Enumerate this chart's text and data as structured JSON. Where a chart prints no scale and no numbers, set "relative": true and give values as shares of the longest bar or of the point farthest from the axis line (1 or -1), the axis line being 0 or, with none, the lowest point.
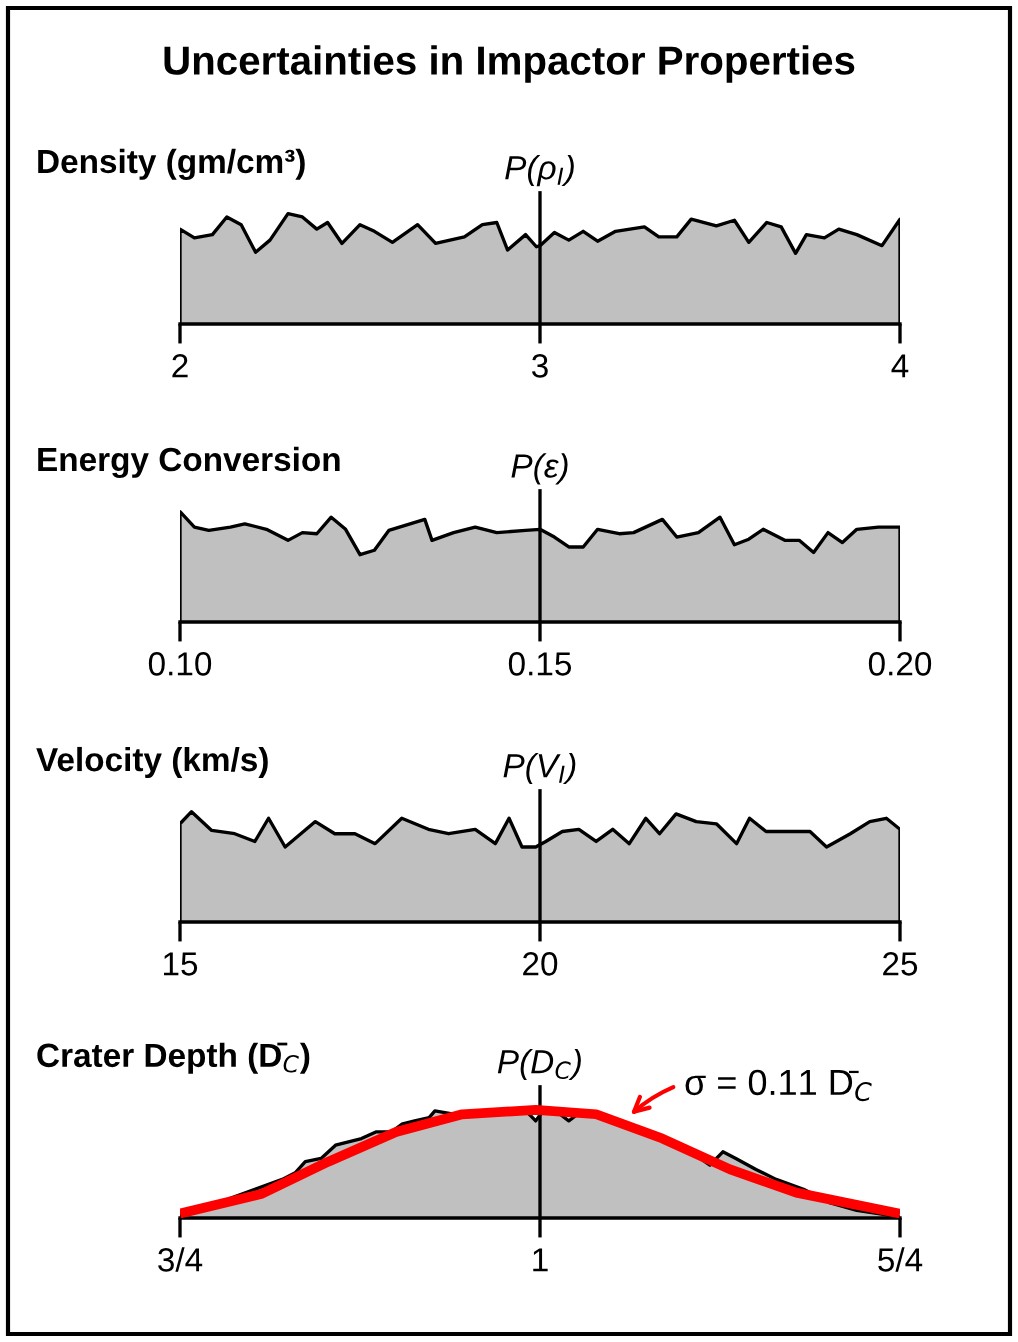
{
  "chart_data": [
    {
      "type": "area",
      "title": "Density (gm/cm³)",
      "relative": true,
      "annotations": [
        "Uncertainties in Impactor Properties"
      ],
      "xlim": [
        2,
        4
      ],
      "xticks": [
        2,
        3,
        4
      ],
      "ref_lines": [
        {
          "axis": "x",
          "value": 3,
          "label": "P(ρ$_{I}$)"
        }
      ],
      "series": [
        {
          "color": "#c0c0c0",
          "x": [
            2.0,
            2.0,
            2.04,
            2.09,
            2.13,
            2.17,
            2.21,
            2.25,
            2.3,
            2.34,
            2.38,
            2.41,
            2.45,
            2.5,
            2.54,
            2.59,
            2.66,
            2.71,
            2.79,
            2.84,
            2.88,
            2.91,
            2.96,
            2.99,
            3.0,
            3.04,
            3.08,
            3.12,
            3.16,
            3.21,
            3.29,
            3.33,
            3.38,
            3.42,
            3.49,
            3.54,
            3.58,
            3.63,
            3.67,
            3.71,
            3.74,
            3.79,
            3.83,
            3.88,
            3.95,
            4.0,
            4.0
          ],
          "values": [
            0,
            0.86,
            0.78,
            0.81,
            0.97,
            0.9,
            0.65,
            0.76,
            1.0,
            0.97,
            0.86,
            0.92,
            0.73,
            0.9,
            0.84,
            0.74,
            0.9,
            0.73,
            0.79,
            0.9,
            0.92,
            0.67,
            0.81,
            0.7,
            0.71,
            0.83,
            0.76,
            0.84,
            0.75,
            0.84,
            0.88,
            0.79,
            0.79,
            0.95,
            0.89,
            0.94,
            0.74,
            0.92,
            0.88,
            0.64,
            0.81,
            0.78,
            0.86,
            0.81,
            0.71,
            0.95,
            0
          ]
        }
      ]
    },
    {
      "type": "area",
      "title": "Energy Conversion",
      "relative": true,
      "xlim": [
        0.1,
        0.2
      ],
      "xticks": [
        {
          "value": 0.1,
          "label": "0.10"
        },
        {
          "value": 0.15,
          "label": "0.15"
        },
        {
          "value": 0.2,
          "label": "0.20"
        }
      ],
      "ref_lines": [
        {
          "axis": "x",
          "value": 0.15,
          "label": "P(ε)"
        }
      ],
      "series": [
        {
          "color": "#c0c0c0",
          "x": [
            0.1,
            0.1,
            0.102,
            0.104,
            0.107,
            0.109,
            0.112,
            0.115,
            0.117,
            0.119,
            0.121,
            0.123,
            0.125,
            0.127,
            0.129,
            0.134,
            0.135,
            0.138,
            0.141,
            0.144,
            0.148,
            0.15,
            0.152,
            0.154,
            0.156,
            0.158,
            0.161,
            0.163,
            0.167,
            0.169,
            0.172,
            0.175,
            0.177,
            0.179,
            0.181,
            0.184,
            0.186,
            0.188,
            0.19,
            0.192,
            0.194,
            0.197,
            0.2,
            0.2
          ],
          "values": [
            0,
            1.0,
            0.86,
            0.83,
            0.86,
            0.89,
            0.84,
            0.74,
            0.81,
            0.8,
            0.95,
            0.84,
            0.61,
            0.65,
            0.83,
            0.93,
            0.74,
            0.81,
            0.86,
            0.81,
            0.83,
            0.84,
            0.77,
            0.68,
            0.68,
            0.84,
            0.8,
            0.81,
            0.93,
            0.77,
            0.81,
            0.95,
            0.7,
            0.75,
            0.84,
            0.74,
            0.74,
            0.63,
            0.81,
            0.72,
            0.84,
            0.86,
            0.86,
            0
          ]
        }
      ]
    },
    {
      "type": "area",
      "title": "Velocity (km/s)",
      "relative": true,
      "xlim": [
        15,
        25
      ],
      "xticks": [
        15,
        20,
        25
      ],
      "ref_lines": [
        {
          "axis": "x",
          "value": 20,
          "label": "P(V$_{I}$)"
        }
      ],
      "series": [
        {
          "color": "#c0c0c0",
          "x": [
            15.0,
            15.0,
            15.16,
            15.44,
            15.76,
            16.04,
            16.23,
            16.46,
            16.88,
            17.15,
            17.43,
            17.71,
            18.08,
            18.45,
            18.73,
            19.1,
            19.38,
            19.57,
            19.75,
            19.94,
            20.08,
            20.31,
            20.54,
            20.78,
            21.01,
            21.24,
            21.47,
            21.66,
            21.89,
            22.17,
            22.45,
            22.73,
            22.91,
            23.14,
            23.47,
            23.75,
            23.98,
            24.31,
            24.58,
            24.81,
            25.0,
            25.0
          ],
          "values": [
            0,
            0.89,
            1.0,
            0.83,
            0.8,
            0.73,
            0.94,
            0.68,
            0.91,
            0.8,
            0.8,
            0.71,
            0.94,
            0.84,
            0.8,
            0.84,
            0.71,
            0.94,
            0.68,
            0.68,
            0.73,
            0.82,
            0.84,
            0.73,
            0.84,
            0.71,
            0.94,
            0.8,
            0.98,
            0.91,
            0.89,
            0.71,
            0.94,
            0.82,
            0.82,
            0.82,
            0.68,
            0.8,
            0.91,
            0.94,
            0.84,
            0
          ]
        }
      ]
    },
    {
      "type": "area",
      "title": "Crater Depth (D̄$_{C}$)",
      "relative": true,
      "xlim": [
        0.75,
        1.25
      ],
      "xticks": [
        {
          "value": 0.75,
          "label": "3/4"
        },
        {
          "value": 1,
          "label": "1"
        },
        {
          "value": 1.25,
          "label": "5/4"
        }
      ],
      "ref_lines": [
        {
          "axis": "x",
          "value": 1,
          "label": "P(D$_{C}$)"
        }
      ],
      "annotations": [
        {
          "text": "σ = 0.11 D̄$_{C}$",
          "x": 1.06,
          "y": 0.9
        }
      ],
      "series": [
        {
          "color": "#c0c0c0",
          "x": [
            0.75,
            0.75,
            0.783,
            0.802,
            0.821,
            0.83,
            0.837,
            0.848,
            0.858,
            0.867,
            0.876,
            0.886,
            0.897,
            0.904,
            0.913,
            0.923,
            0.927,
            0.941,
            0.96,
            0.974,
            0.988,
            0.997,
            1.002,
            1.011,
            1.02,
            1.029,
            1.043,
            1.057,
            1.071,
            1.09,
            1.108,
            1.118,
            1.127,
            1.136,
            1.15,
            1.164,
            1.183,
            1.201,
            1.22,
            1.25,
            1.25
          ],
          "values": [
            0,
            0.04,
            0.17,
            0.26,
            0.35,
            0.41,
            0.51,
            0.54,
            0.66,
            0.69,
            0.72,
            0.78,
            0.78,
            0.85,
            0.88,
            0.91,
            0.97,
            0.94,
            0.94,
            0.95,
            1.0,
            0.88,
            0.97,
            0.97,
            0.88,
            0.97,
            0.91,
            0.85,
            0.78,
            0.69,
            0.57,
            0.48,
            0.6,
            0.54,
            0.44,
            0.35,
            0.26,
            0.14,
            0.07,
            0.01,
            0
          ]
        },
        {
          "type": "line",
          "color": "#ff0000",
          "x": [
            0.75,
            0.807,
            0.853,
            0.9,
            0.946,
            0.997,
            1.039,
            1.085,
            1.132,
            1.178,
            1.25
          ],
          "values": [
            0.04,
            0.22,
            0.51,
            0.78,
            0.94,
            0.98,
            0.94,
            0.72,
            0.44,
            0.23,
            0.04
          ]
        }
      ]
    }
  ]
}
